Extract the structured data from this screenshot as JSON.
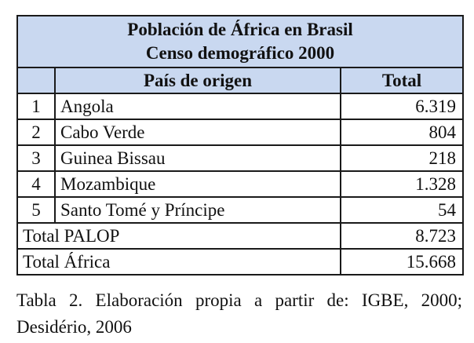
{
  "table": {
    "title_line1": "Población de África en Brasil",
    "title_line2": "Censo demográfico 2000",
    "header": {
      "country": "País de origen",
      "total": "Total"
    },
    "rows": [
      {
        "num": "1",
        "country": "Angola",
        "total": "6.319"
      },
      {
        "num": "2",
        "country": "Cabo Verde",
        "total": "804"
      },
      {
        "num": "3",
        "country": "Guinea Bissau",
        "total": "218"
      },
      {
        "num": "4",
        "country": "Mozambique",
        "total": "1.328"
      },
      {
        "num": "5",
        "country": "Santo Tomé y Príncipe",
        "total": "54"
      }
    ],
    "totals": [
      {
        "label": "Total PALOP",
        "value": "8.723"
      },
      {
        "label": "Total África",
        "value": "15.668"
      }
    ],
    "header_color": "#c9d8f0"
  },
  "caption": "Tabla 2. Elaboración propia a partir de: IGBE, 2000; Desidério, 2006"
}
